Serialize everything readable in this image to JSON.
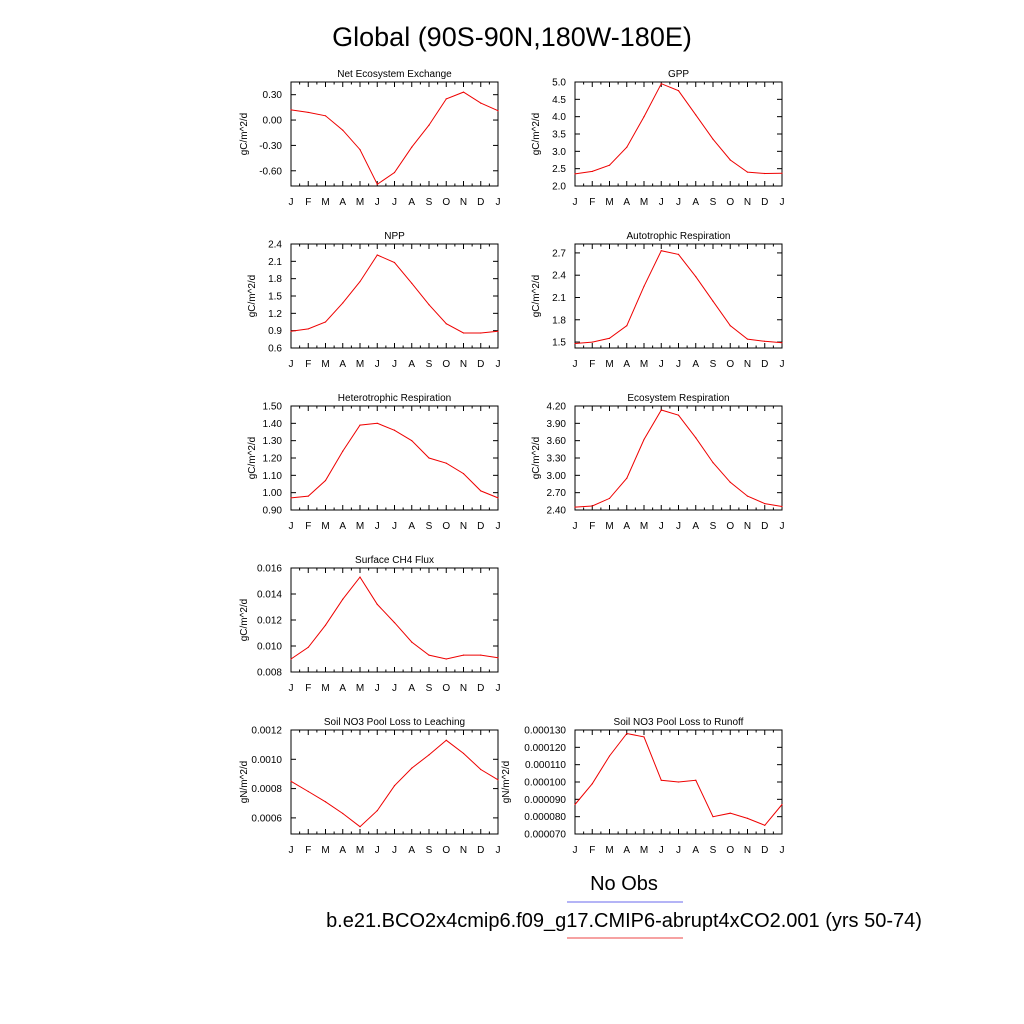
{
  "page_title": "Global (90S-90N,180W-180E)",
  "legend": [
    {
      "label": "No Obs",
      "color": "#6a6aee"
    },
    {
      "label": "b.e21.BCO2x4cmip6.f09_g17.CMIP6-abrupt4xCO2.001 (yrs 50-74)",
      "color": "#ee4444"
    }
  ],
  "series_color": "#ee0000",
  "chart_data": [
    {
      "type": "line",
      "title": "Net Ecosystem Exchange",
      "ylabel": "gC/m^2/d",
      "x": [
        "J",
        "F",
        "M",
        "A",
        "M",
        "J",
        "J",
        "A",
        "S",
        "O",
        "N",
        "D",
        "J"
      ],
      "values": [
        0.12,
        0.09,
        0.05,
        -0.12,
        -0.35,
        -0.76,
        -0.62,
        -0.32,
        -0.06,
        0.25,
        0.33,
        0.2,
        0.11
      ],
      "ylim": [
        -0.78,
        0.45
      ],
      "yticks": [
        -0.6,
        -0.3,
        0.0,
        0.3
      ],
      "yticklabels": [
        "-0.60",
        "-0.30",
        "0.00",
        "0.30"
      ]
    },
    {
      "type": "line",
      "title": "GPP",
      "ylabel": "gC/m^2/d",
      "x": [
        "J",
        "F",
        "M",
        "A",
        "M",
        "J",
        "J",
        "A",
        "S",
        "O",
        "N",
        "D",
        "J"
      ],
      "values": [
        2.35,
        2.42,
        2.6,
        3.12,
        4.0,
        4.95,
        4.75,
        4.05,
        3.35,
        2.75,
        2.4,
        2.36,
        2.37
      ],
      "ylim": [
        2.0,
        5.0
      ],
      "yticks": [
        2.0,
        2.5,
        3.0,
        3.5,
        4.0,
        4.5,
        5.0
      ],
      "yticklabels": [
        "2.0",
        "2.5",
        "3.0",
        "3.5",
        "4.0",
        "4.5",
        "5.0"
      ]
    },
    {
      "type": "line",
      "title": "NPP",
      "ylabel": "gC/m^2/d",
      "x": [
        "J",
        "F",
        "M",
        "A",
        "M",
        "J",
        "J",
        "A",
        "S",
        "O",
        "N",
        "D",
        "J"
      ],
      "values": [
        0.89,
        0.93,
        1.05,
        1.38,
        1.75,
        2.21,
        2.08,
        1.72,
        1.35,
        1.02,
        0.86,
        0.86,
        0.89
      ],
      "ylim": [
        0.6,
        2.4
      ],
      "yticks": [
        0.6,
        0.9,
        1.2,
        1.5,
        1.8,
        2.1,
        2.4
      ],
      "yticklabels": [
        "0.6",
        "0.9",
        "1.2",
        "1.5",
        "1.8",
        "2.1",
        "2.4"
      ]
    },
    {
      "type": "line",
      "title": "Autotrophic Respiration",
      "ylabel": "gC/m^2/d",
      "x": [
        "J",
        "F",
        "M",
        "A",
        "M",
        "J",
        "J",
        "A",
        "S",
        "O",
        "N",
        "D",
        "J"
      ],
      "values": [
        1.48,
        1.5,
        1.55,
        1.72,
        2.25,
        2.73,
        2.68,
        2.38,
        2.05,
        1.72,
        1.54,
        1.51,
        1.49
      ],
      "ylim": [
        1.42,
        2.82
      ],
      "yticks": [
        1.5,
        1.8,
        2.1,
        2.4,
        2.7
      ],
      "yticklabels": [
        "1.5",
        "1.8",
        "2.1",
        "2.4",
        "2.7"
      ]
    },
    {
      "type": "line",
      "title": "Heterotrophic Respiration",
      "ylabel": "gC/m^2/d",
      "x": [
        "J",
        "F",
        "M",
        "A",
        "M",
        "J",
        "J",
        "A",
        "S",
        "O",
        "N",
        "D",
        "J"
      ],
      "values": [
        0.97,
        0.98,
        1.07,
        1.24,
        1.39,
        1.4,
        1.36,
        1.3,
        1.2,
        1.17,
        1.11,
        1.01,
        0.97
      ],
      "ylim": [
        0.9,
        1.5
      ],
      "yticks": [
        0.9,
        1.0,
        1.1,
        1.2,
        1.3,
        1.4,
        1.5
      ],
      "yticklabels": [
        "0.90",
        "1.00",
        "1.10",
        "1.20",
        "1.30",
        "1.40",
        "1.50"
      ]
    },
    {
      "type": "line",
      "title": "Ecosystem Respiration",
      "ylabel": "gC/m^2/d",
      "x": [
        "J",
        "F",
        "M",
        "A",
        "M",
        "J",
        "J",
        "A",
        "S",
        "O",
        "N",
        "D",
        "J"
      ],
      "values": [
        2.45,
        2.47,
        2.6,
        2.95,
        3.62,
        4.13,
        4.04,
        3.65,
        3.22,
        2.88,
        2.64,
        2.51,
        2.46
      ],
      "ylim": [
        2.4,
        4.2
      ],
      "yticks": [
        2.4,
        2.7,
        3.0,
        3.3,
        3.6,
        3.9,
        4.2
      ],
      "yticklabels": [
        "2.40",
        "2.70",
        "3.00",
        "3.30",
        "3.60",
        "3.90",
        "4.20"
      ]
    },
    {
      "type": "line",
      "title": "Surface CH4 Flux",
      "ylabel": "gC/m^2/d",
      "x": [
        "J",
        "F",
        "M",
        "A",
        "M",
        "J",
        "J",
        "A",
        "S",
        "O",
        "N",
        "D",
        "J"
      ],
      "values": [
        0.009,
        0.0099,
        0.0116,
        0.0136,
        0.0153,
        0.0132,
        0.0118,
        0.0103,
        0.0093,
        0.009,
        0.0093,
        0.0093,
        0.0091
      ],
      "ylim": [
        0.008,
        0.016
      ],
      "yticks": [
        0.008,
        0.01,
        0.012,
        0.014,
        0.016
      ],
      "yticklabels": [
        "0.008",
        "0.010",
        "0.012",
        "0.014",
        "0.016"
      ]
    },
    {
      "type": "line",
      "title": "Soil NO3 Pool Loss to Leaching",
      "ylabel": "gN/m^2/d",
      "x": [
        "J",
        "F",
        "M",
        "A",
        "M",
        "J",
        "J",
        "A",
        "S",
        "O",
        "N",
        "D",
        "J"
      ],
      "values": [
        0.00085,
        0.00078,
        0.00071,
        0.00063,
        0.00054,
        0.00065,
        0.00082,
        0.00094,
        0.00103,
        0.00113,
        0.00104,
        0.00093,
        0.00086
      ],
      "ylim": [
        0.00049,
        0.0012
      ],
      "yticks": [
        0.0006,
        0.0008,
        0.001,
        0.0012
      ],
      "yticklabels": [
        "0.0006",
        "0.0008",
        "0.0010",
        "0.0012"
      ]
    },
    {
      "type": "line",
      "title": "Soil NO3 Pool Loss to Runoff",
      "ylabel": "gN/m^2/d",
      "x": [
        "J",
        "F",
        "M",
        "A",
        "M",
        "J",
        "J",
        "A",
        "S",
        "O",
        "N",
        "D",
        "J"
      ],
      "values": [
        8.7e-05,
        9.9e-05,
        0.000115,
        0.000128,
        0.000126,
        0.000101,
        0.0001,
        0.000101,
        8e-05,
        8.2e-05,
        7.9e-05,
        7.5e-05,
        8.7e-05
      ],
      "ylim": [
        7e-05,
        0.00013
      ],
      "yticks": [
        7e-05,
        8e-05,
        9e-05,
        0.0001,
        0.00011,
        0.00012,
        0.00013
      ],
      "yticklabels": [
        "0.000070",
        "0.000080",
        "0.000090",
        "0.000100",
        "0.000110",
        "0.000120",
        "0.000130"
      ]
    }
  ]
}
